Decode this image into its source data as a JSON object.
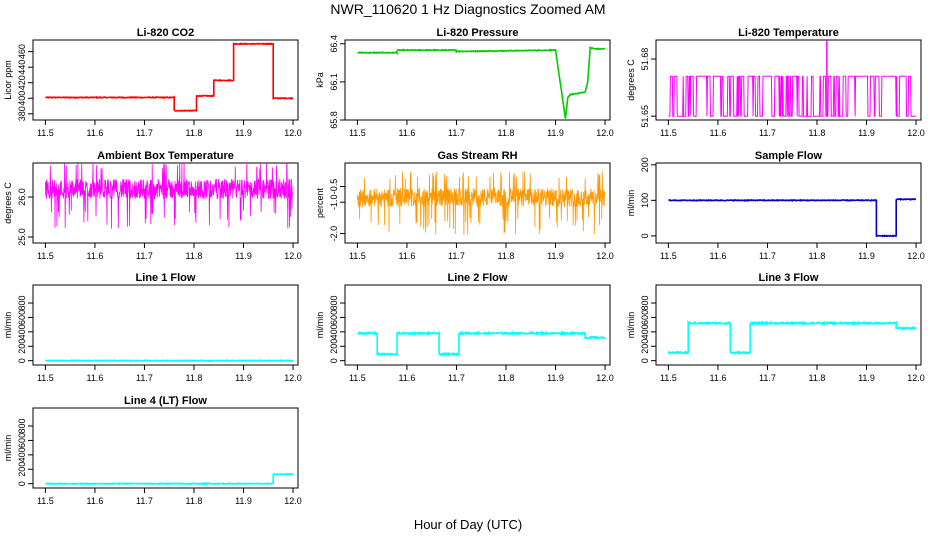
{
  "page": {
    "title": "NWR_110620  1 Hz Diagnostics Zoomed AM",
    "xlabel": "Hour of Day (UTC)"
  },
  "chart_data": [
    {
      "id": "co2",
      "type": "line",
      "title": "Li-820 CO2",
      "xlabel": "",
      "ylabel": "Licor ppm",
      "color": "#ff0000",
      "xlim": [
        11.475,
        12.01
      ],
      "ylim": [
        372,
        475
      ],
      "xticks": [
        "11.5",
        "11.6",
        "11.7",
        "11.8",
        "11.9",
        "12.0"
      ],
      "yticks": [
        "380",
        "400",
        "420",
        "440",
        "460"
      ],
      "x": [
        11.5,
        11.76,
        11.76,
        11.805,
        11.805,
        11.84,
        11.84,
        11.88,
        11.88,
        11.96,
        11.96,
        12.0
      ],
      "y": [
        401,
        401,
        384,
        384,
        403,
        403,
        423,
        423,
        470,
        470,
        400,
        400
      ]
    },
    {
      "id": "pressure",
      "type": "line",
      "title": "Li-820 Pressure",
      "xlabel": "",
      "ylabel": "kPa",
      "color": "#00cc00",
      "xlim": [
        11.475,
        12.01
      ],
      "ylim": [
        65.8,
        66.43
      ],
      "xticks": [
        "11.5",
        "11.6",
        "11.7",
        "11.8",
        "11.9",
        "12.0"
      ],
      "yticks": [
        "65.8",
        "66.1",
        "66.4"
      ],
      "x": [
        11.5,
        11.58,
        11.58,
        11.7,
        11.7,
        11.9,
        11.92,
        11.925,
        11.93,
        11.96,
        11.965,
        11.97,
        11.98,
        12.0
      ],
      "y": [
        66.33,
        66.33,
        66.35,
        66.35,
        66.34,
        66.35,
        65.81,
        65.98,
        66.0,
        66.02,
        66.1,
        66.37,
        66.36,
        66.36
      ]
    },
    {
      "id": "temperature",
      "type": "line",
      "title": "Li-820 Temperature",
      "xlabel": "",
      "ylabel": "degrees C",
      "color": "#ff00ff",
      "xlim": [
        11.475,
        12.01
      ],
      "ylim": [
        51.648,
        51.69
      ],
      "xticks": [
        "11.5",
        "11.6",
        "11.7",
        "11.8",
        "11.9",
        "12.0"
      ],
      "yticks": [
        "51.65",
        "51.68"
      ],
      "x": [
        11.5,
        11.6,
        11.7,
        11.8,
        11.82,
        11.9,
        12.0
      ],
      "y": [
        51.65,
        51.65,
        51.65,
        51.65,
        51.69,
        51.65,
        51.65
      ],
      "alt_level": 51.671,
      "spike_x": 11.82
    },
    {
      "id": "ambient",
      "type": "line",
      "title": "Ambient Box Temperature",
      "xlabel": "",
      "ylabel": "degrees C",
      "color": "#ff00ff",
      "xlim": [
        11.475,
        12.01
      ],
      "ylim": [
        24.85,
        26.85
      ],
      "xticks": [
        "11.5",
        "11.6",
        "11.7",
        "11.8",
        "11.9",
        "12.0"
      ],
      "yticks": [
        "25.0",
        "26.0"
      ],
      "x": [
        11.5,
        12.0
      ],
      "y": [
        26.3,
        26.3
      ],
      "noise_band": [
        25.7,
        26.7
      ]
    },
    {
      "id": "rh",
      "type": "line",
      "title": "Gas Stream RH",
      "xlabel": "",
      "ylabel": "percent",
      "color": "#ff9900",
      "xlim": [
        11.475,
        12.01
      ],
      "ylim": [
        -2.3,
        0.25
      ],
      "xticks": [
        "11.5",
        "11.6",
        "11.7",
        "11.8",
        "11.9",
        "12.0"
      ],
      "yticks": [
        "-2.0",
        "-1.0",
        "-0.5"
      ],
      "x": [
        11.5,
        12.0
      ],
      "y": [
        -0.9,
        -0.9
      ],
      "noise_band": [
        -1.45,
        -0.25
      ]
    },
    {
      "id": "sample",
      "type": "line",
      "title": "Sample Flow",
      "xlabel": "",
      "ylabel": "ml/min",
      "color": "#0000cc",
      "xlim": [
        11.475,
        12.01
      ],
      "ylim": [
        -20,
        205
      ],
      "xticks": [
        "11.5",
        "11.6",
        "11.7",
        "11.8",
        "11.9",
        "12.0"
      ],
      "yticks": [
        "0",
        "100",
        "200"
      ],
      "x": [
        11.5,
        11.92,
        11.92,
        11.96,
        11.96,
        12.0
      ],
      "y": [
        100,
        100,
        0,
        0,
        103,
        103
      ]
    },
    {
      "id": "line1",
      "type": "line",
      "title": "Line 1 Flow",
      "xlabel": "",
      "ylabel": "ml/min",
      "color": "#00ffff",
      "xlim": [
        11.475,
        12.01
      ],
      "ylim": [
        -60,
        1050
      ],
      "xticks": [
        "11.5",
        "11.6",
        "11.7",
        "11.8",
        "11.9",
        "12.0"
      ],
      "yticks": [
        "0",
        "200",
        "400",
        "600",
        "800"
      ],
      "x": [
        11.5,
        12.0
      ],
      "y": [
        0,
        0
      ]
    },
    {
      "id": "line2",
      "type": "line",
      "title": "Line 2 Flow",
      "xlabel": "",
      "ylabel": "ml/min",
      "color": "#00ffff",
      "xlim": [
        11.475,
        12.01
      ],
      "ylim": [
        -60,
        1050
      ],
      "xticks": [
        "11.5",
        "11.6",
        "11.7",
        "11.8",
        "11.9",
        "12.0"
      ],
      "yticks": [
        "0",
        "200",
        "400",
        "600",
        "800"
      ],
      "x": [
        11.5,
        11.54,
        11.54,
        11.58,
        11.58,
        11.665,
        11.665,
        11.705,
        11.705,
        11.96,
        11.96,
        12.0
      ],
      "y": [
        380,
        380,
        90,
        90,
        380,
        380,
        90,
        90,
        380,
        380,
        320,
        320
      ]
    },
    {
      "id": "line3",
      "type": "line",
      "title": "Line 3 Flow",
      "xlabel": "",
      "ylabel": "ml/min",
      "color": "#00ffff",
      "xlim": [
        11.475,
        12.01
      ],
      "ylim": [
        -60,
        1050
      ],
      "xticks": [
        "11.5",
        "11.6",
        "11.7",
        "11.8",
        "11.9",
        "12.0"
      ],
      "yticks": [
        "0",
        "200",
        "400",
        "600",
        "800"
      ],
      "x": [
        11.5,
        11.54,
        11.54,
        11.625,
        11.625,
        11.665,
        11.665,
        11.96,
        11.96,
        12.0
      ],
      "y": [
        110,
        110,
        520,
        520,
        110,
        110,
        520,
        520,
        450,
        450
      ]
    },
    {
      "id": "line4",
      "type": "line",
      "title": "Line 4 (LT) Flow",
      "xlabel": "",
      "ylabel": "ml/min",
      "color": "#00ffff",
      "xlim": [
        11.475,
        12.01
      ],
      "ylim": [
        -60,
        1050
      ],
      "xticks": [
        "11.5",
        "11.6",
        "11.7",
        "11.8",
        "11.9",
        "12.0"
      ],
      "yticks": [
        "0",
        "200",
        "400",
        "600",
        "800"
      ],
      "x": [
        11.5,
        11.96,
        11.96,
        12.0
      ],
      "y": [
        0,
        0,
        130,
        130
      ]
    }
  ]
}
